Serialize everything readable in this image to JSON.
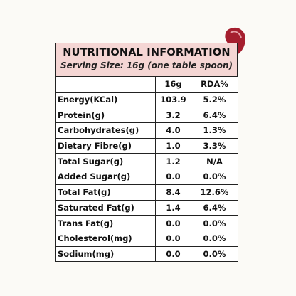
{
  "header": {
    "title": "NUTRITIONAL INFORMATION",
    "subtitle": "Serving Size: 16g (one table spoon)"
  },
  "table": {
    "columns": [
      "",
      "16g",
      "RDA%"
    ],
    "rows": [
      [
        "Energy(KCal)",
        "103.9",
        "5.2%"
      ],
      [
        "Protein(g)",
        "3.2",
        "6.4%"
      ],
      [
        "Carbohydrates(g)",
        "4.0",
        "1.3%"
      ],
      [
        "Dietary Fibre(g)",
        "1.0",
        "3.3%"
      ],
      [
        "Total Sugar(g)",
        "1.2",
        "N/A"
      ],
      [
        "Added Sugar(g)",
        "0.0",
        "0.0%"
      ],
      [
        "Total Fat(g)",
        "8.4",
        "12.6%"
      ],
      [
        "Saturated Fat(g)",
        "1.4",
        "6.4%"
      ],
      [
        "Trans Fat(g)",
        "0.0",
        "0.0%"
      ],
      [
        "Cholesterol(mg)",
        "0.0",
        "0.0%"
      ],
      [
        "Sodium(mg)",
        "0.0",
        "0.0%"
      ]
    ]
  }
}
